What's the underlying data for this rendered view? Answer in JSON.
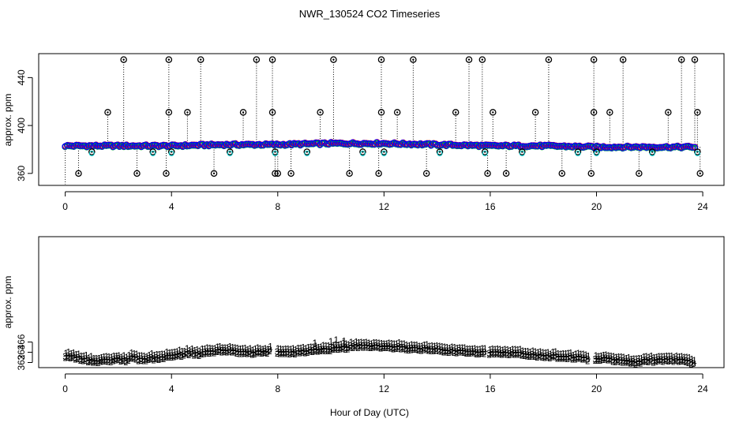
{
  "chart_data": {
    "title": "NWR_130524  CO2 Timeseries",
    "xlabel": "Hour of Day (UTC)",
    "x_ticks": [
      0,
      4,
      8,
      12,
      16,
      20,
      24
    ],
    "panels": [
      {
        "type": "scatter",
        "ylabel": "approx. ppm",
        "ylim": [
          350,
          460
        ],
        "y_ticks": [
          360,
          400,
          440
        ],
        "xlim": [
          -1,
          24.8
        ],
        "series": [
          {
            "name": "black",
            "symbol": "circle",
            "color": "#000000"
          },
          {
            "name": "red",
            "symbol": "circle",
            "color": "#ff0000"
          },
          {
            "name": "green",
            "symbol": "circle",
            "color": "#00cc00"
          },
          {
            "name": "cyan",
            "symbol": "circle",
            "color": "#00cccc"
          },
          {
            "name": "blue",
            "symbol": "circle",
            "color": "#0000ff"
          }
        ],
        "baseline": [
          [
            0,
            383
          ],
          [
            2,
            383
          ],
          [
            4,
            383
          ],
          [
            6,
            384
          ],
          [
            8,
            384
          ],
          [
            10,
            385
          ],
          [
            12,
            385
          ],
          [
            14,
            384
          ],
          [
            16,
            383
          ],
          [
            18,
            383
          ],
          [
            20,
            382
          ],
          [
            22,
            382
          ],
          [
            23.7,
            382
          ]
        ],
        "spikes": [
          [
            0.5,
            360
          ],
          [
            1.0,
            378
          ],
          [
            1.6,
            411
          ],
          [
            2.2,
            455
          ],
          [
            2.7,
            360
          ],
          [
            3.3,
            378
          ],
          [
            3.8,
            360
          ],
          [
            3.9,
            411
          ],
          [
            3.9,
            455
          ],
          [
            4.0,
            378
          ],
          [
            4.6,
            411
          ],
          [
            5.1,
            455
          ],
          [
            5.6,
            360
          ],
          [
            6.2,
            378
          ],
          [
            6.7,
            411
          ],
          [
            7.2,
            455
          ],
          [
            7.8,
            455
          ],
          [
            7.8,
            411
          ],
          [
            7.9,
            360
          ],
          [
            7.9,
            378
          ],
          [
            8.0,
            360
          ],
          [
            8.5,
            360
          ],
          [
            9.1,
            378
          ],
          [
            9.6,
            411
          ],
          [
            10.1,
            455
          ],
          [
            10.7,
            360
          ],
          [
            11.2,
            378
          ],
          [
            11.8,
            360
          ],
          [
            11.9,
            411
          ],
          [
            11.9,
            455
          ],
          [
            12.0,
            378
          ],
          [
            12.5,
            411
          ],
          [
            13.1,
            455
          ],
          [
            13.6,
            360
          ],
          [
            14.1,
            378
          ],
          [
            14.7,
            411
          ],
          [
            15.2,
            455
          ],
          [
            15.7,
            455
          ],
          [
            15.8,
            378
          ],
          [
            15.9,
            360
          ],
          [
            16.1,
            411
          ],
          [
            16.6,
            360
          ],
          [
            17.2,
            378
          ],
          [
            17.7,
            411
          ],
          [
            18.2,
            455
          ],
          [
            18.7,
            360
          ],
          [
            19.3,
            378
          ],
          [
            19.8,
            360
          ],
          [
            19.9,
            411
          ],
          [
            19.9,
            455
          ],
          [
            20.0,
            378
          ],
          [
            20.5,
            411
          ],
          [
            21.0,
            455
          ],
          [
            21.6,
            360
          ],
          [
            22.1,
            378
          ],
          [
            22.7,
            411
          ],
          [
            23.2,
            455
          ],
          [
            23.7,
            455
          ],
          [
            23.8,
            411
          ],
          [
            23.8,
            378
          ],
          [
            23.9,
            360
          ]
        ]
      },
      {
        "type": "scatter",
        "ylabel": "approx. ppm",
        "ylim": [
          361,
          386.6
        ],
        "y_ticks": [
          362,
          364,
          366
        ],
        "xlim": [
          -1,
          24.8
        ],
        "series": [
          {
            "name": "1",
            "symbol": "1",
            "color": "#ff0000",
            "offset": 0.6
          },
          {
            "name": "2",
            "symbol": "2",
            "color": "#00cc00",
            "offset": -0.25
          },
          {
            "name": "3",
            "symbol": "3",
            "color": "#0000ff",
            "offset": 0
          }
        ],
        "profile": [
          [
            0.0,
            363.3
          ],
          [
            0.4,
            363.0
          ],
          [
            0.8,
            362.5
          ],
          [
            1.2,
            362.2
          ],
          [
            1.6,
            362.4
          ],
          [
            2.0,
            362.6
          ],
          [
            2.3,
            362.5
          ],
          [
            2.5,
            363.1
          ],
          [
            2.8,
            362.6
          ],
          [
            3.2,
            362.8
          ],
          [
            3.6,
            363.0
          ],
          [
            4.0,
            363.3
          ],
          [
            4.4,
            363.6
          ],
          [
            4.7,
            363.9
          ],
          [
            5.0,
            363.7
          ],
          [
            5.5,
            364.1
          ],
          [
            6.0,
            364.4
          ],
          [
            6.4,
            364.2
          ],
          [
            6.8,
            363.9
          ],
          [
            7.2,
            364.0
          ],
          [
            7.6,
            364.1
          ],
          [
            7.7,
            364.3
          ],
          [
            8.2,
            364.0
          ],
          [
            8.6,
            364.0
          ],
          [
            9.0,
            364.2
          ],
          [
            9.4,
            364.3
          ],
          [
            9.8,
            364.5
          ],
          [
            10.2,
            364.8
          ],
          [
            10.6,
            365.0
          ],
          [
            11.0,
            365.2
          ],
          [
            11.6,
            365.2
          ],
          [
            12.0,
            365.0
          ],
          [
            12.5,
            364.9
          ],
          [
            13.0,
            364.8
          ],
          [
            13.5,
            364.6
          ],
          [
            14.0,
            364.5
          ],
          [
            14.5,
            364.3
          ],
          [
            15.0,
            364.2
          ],
          [
            15.5,
            364.0
          ],
          [
            15.8,
            364.0
          ],
          [
            16.1,
            363.9
          ],
          [
            16.5,
            363.9
          ],
          [
            17.0,
            363.7
          ],
          [
            17.5,
            363.5
          ],
          [
            18.0,
            363.3
          ],
          [
            18.5,
            363.2
          ],
          [
            19.0,
            363.0
          ],
          [
            19.5,
            362.8
          ],
          [
            19.8,
            362.5
          ],
          [
            20.2,
            362.8
          ],
          [
            20.6,
            362.6
          ],
          [
            21.0,
            362.2
          ],
          [
            21.5,
            362.1
          ],
          [
            22.0,
            362.4
          ],
          [
            22.5,
            362.5
          ],
          [
            23.0,
            362.5
          ],
          [
            23.5,
            362.3
          ],
          [
            23.7,
            361.4
          ]
        ],
        "red_peaks": [
          [
            9.4,
            365.8
          ],
          [
            10.0,
            366.1
          ],
          [
            10.2,
            366.4
          ],
          [
            10.5,
            366.2
          ]
        ]
      }
    ]
  }
}
